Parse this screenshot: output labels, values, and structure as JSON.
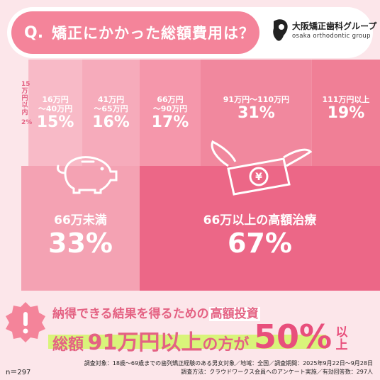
{
  "header": {
    "q_mark": "Q.",
    "question": "矯正にかかった総額費用は？",
    "logo_name": "大阪矯正歯科グループ",
    "logo_sub": "osaka orthodontic group"
  },
  "chart_data": {
    "type": "treemap",
    "segments": [
      {
        "range": [
          "15",
          "万",
          "円",
          "以",
          "内"
        ],
        "percent": 2,
        "label": "2%",
        "color": "#fce6ea"
      },
      {
        "range": [
          "16万円",
          "〜40万円"
        ],
        "percent": 15,
        "label": "15%",
        "color": "#f8bac7"
      },
      {
        "range": [
          "41万円",
          "〜65万円"
        ],
        "percent": 16,
        "label": "16%",
        "color": "#f6abbb"
      },
      {
        "range": [
          "66万円",
          "〜90万円"
        ],
        "percent": 17,
        "label": "17%",
        "color": "#f597ab"
      },
      {
        "range": [
          "91万円〜110万円"
        ],
        "percent": 31,
        "label": "31%",
        "color": "#f1889e"
      },
      {
        "range": [
          "111万円以上"
        ],
        "percent": 19,
        "label": "19%",
        "color": "#f07f96"
      }
    ],
    "groups": [
      {
        "title": "66万未満",
        "percent": 33,
        "label": "33%",
        "color": "#f4a2b3"
      },
      {
        "title": "66万以上の高額治療",
        "percent": 67,
        "label": "67%",
        "color": "#ec6787"
      }
    ]
  },
  "banner": {
    "line1_pre": "納得できる結果を得るための",
    "line1_highlight": "高額投資",
    "line2_a": "総額",
    "line2_b": "91万円以上",
    "line2_c": "の方が",
    "stat": "50%",
    "stat_suffix": "以上"
  },
  "footer": {
    "n": "n＝297",
    "note1": "調査対象：18歳〜69歳までの歯列矯正経験のある男女対象／地域：全国／調査期間：2025年9月22日〜9月28日",
    "note2": "調査方法：クラウドワークス会員へのアンケート実施／有効回答数：297人"
  },
  "colors": {
    "background": "#fce6ea",
    "accent": "#f4849a",
    "highlight": "#d9f47a"
  }
}
